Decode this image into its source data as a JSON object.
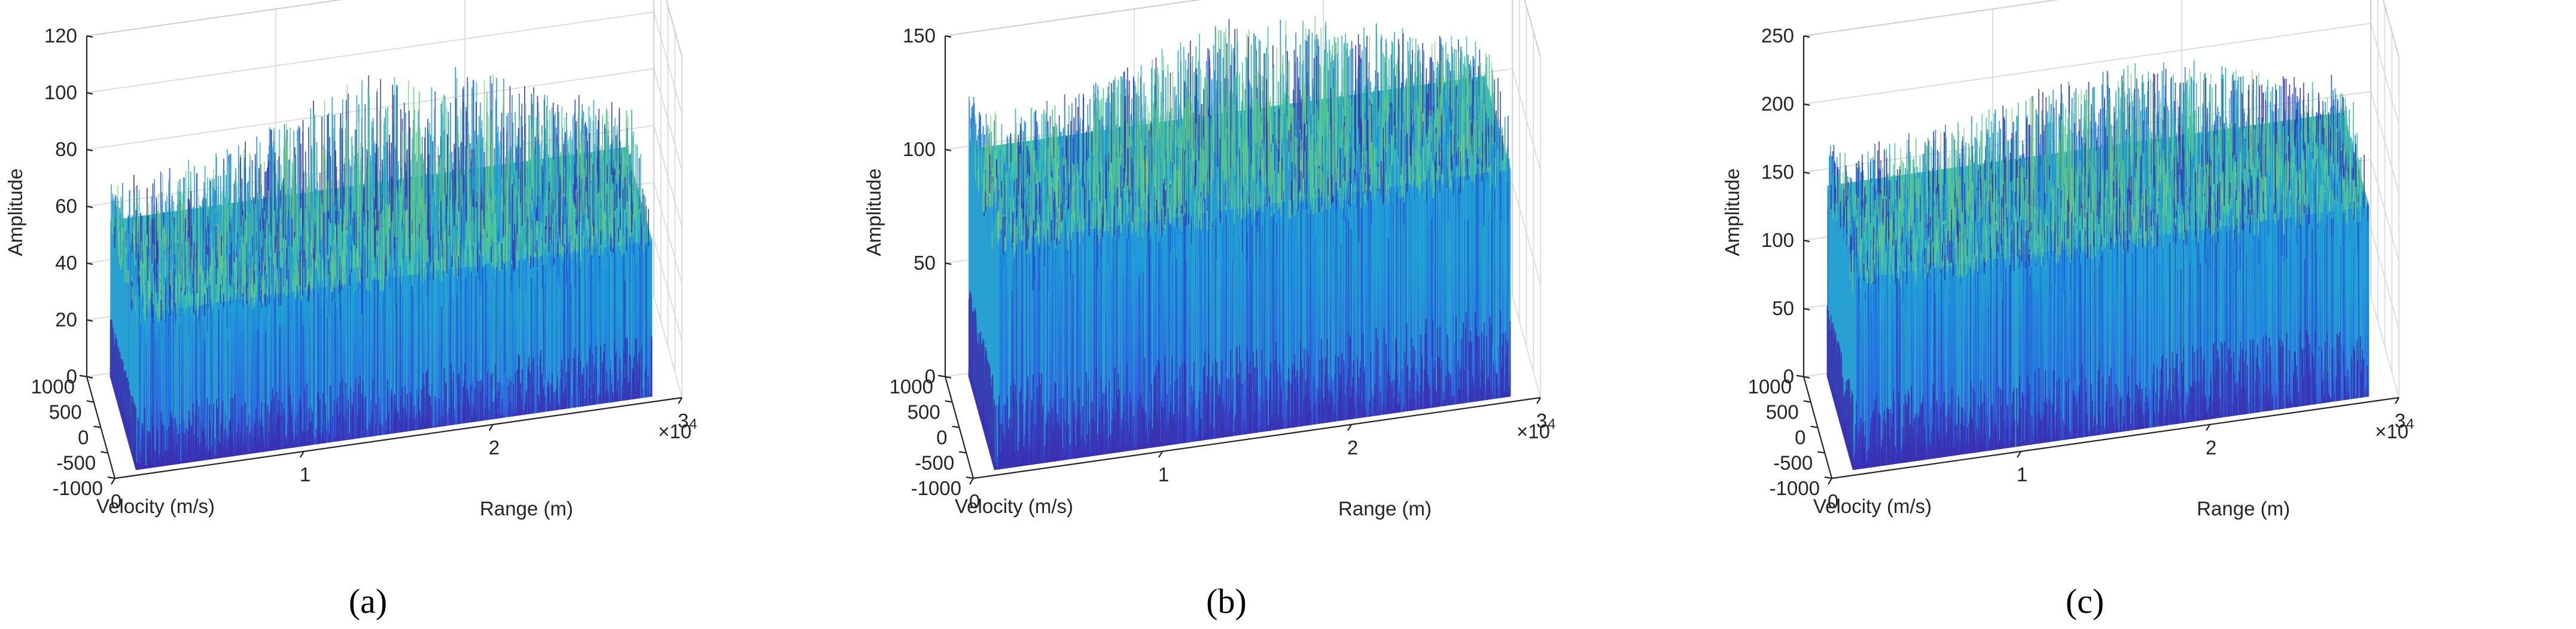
{
  "chart_data": [
    {
      "type": "surface3d",
      "caption": "(a)",
      "xlabel": "Range (m)",
      "ylabel": "Velocity (m/s)",
      "zlabel": "Amplitude",
      "x_ticks": [
        "0",
        "1",
        "2",
        "3"
      ],
      "x_multiplier": "×10",
      "x_multiplier_exp": "4",
      "xlim": [
        0,
        30000
      ],
      "y_ticks": [
        "-1000",
        "-500",
        "0",
        "500",
        "1000"
      ],
      "ylim": [
        -1000,
        1000
      ],
      "z_ticks": [
        "0",
        "20",
        "40",
        "60",
        "80",
        "100",
        "120"
      ],
      "zlim": [
        0,
        120
      ],
      "surface_base": 55,
      "surface_peak": 110,
      "colormap": [
        "#3b2fc0",
        "#2f6be0",
        "#1e9bd8",
        "#27b7b0",
        "#6cc97b",
        "#c4d24a"
      ]
    },
    {
      "type": "surface3d",
      "caption": "(b)",
      "xlabel": "Range (m)",
      "ylabel": "Velocity (m/s)",
      "zlabel": "Amplitude",
      "x_ticks": [
        "0",
        "1",
        "2",
        "3"
      ],
      "x_multiplier": "×10",
      "x_multiplier_exp": "4",
      "xlim": [
        0,
        30000
      ],
      "y_ticks": [
        "-1000",
        "-500",
        "0",
        "500",
        "1000"
      ],
      "ylim": [
        -1000,
        1000
      ],
      "z_ticks": [
        "0",
        "50",
        "100",
        "150"
      ],
      "zlim": [
        0,
        150
      ],
      "surface_base": 100,
      "surface_peak": 160,
      "colormap": [
        "#3b2fc0",
        "#2f6be0",
        "#1e9bd8",
        "#27b7b0",
        "#6cc97b",
        "#c4d24a"
      ]
    },
    {
      "type": "surface3d",
      "caption": "(c)",
      "xlabel": "Range (m)",
      "ylabel": "Velocity (m/s)",
      "zlabel": "Amplitude",
      "x_ticks": [
        "0",
        "1",
        "2",
        "3"
      ],
      "x_multiplier": "×10",
      "x_multiplier_exp": "4",
      "xlim": [
        0,
        30000
      ],
      "y_ticks": [
        "-1000",
        "-500",
        "0",
        "500",
        "1000"
      ],
      "ylim": [
        -1000,
        1000
      ],
      "z_ticks": [
        "0",
        "50",
        "100",
        "150",
        "200",
        "250"
      ],
      "zlim": [
        0,
        250
      ],
      "surface_base": 140,
      "surface_peak": 230,
      "colormap": [
        "#3b2fc0",
        "#2f6be0",
        "#1e9bd8",
        "#27b7b0",
        "#6cc97b",
        "#c4d24a"
      ]
    }
  ]
}
